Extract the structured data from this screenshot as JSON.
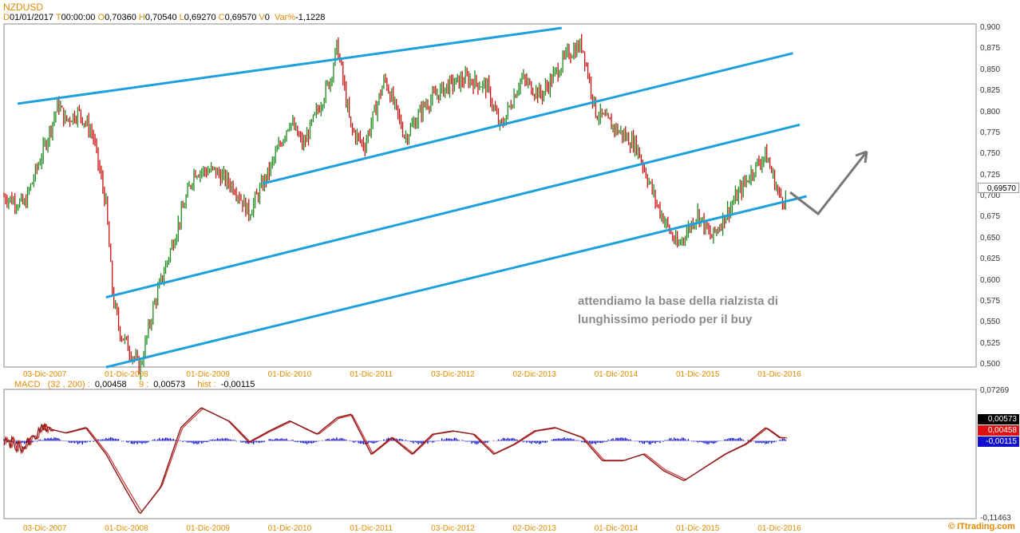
{
  "symbol": "NZDUSD",
  "ohlc_header": {
    "d_label": "D",
    "date": "01/01/2017",
    "t_label": "T",
    "time": "00:00:00",
    "o_label": "O",
    "open": "0,70360",
    "h_label": "H",
    "high": "0,70540",
    "l_label": "L",
    "low": "0,69270",
    "c_label": "C",
    "close": "0,69570",
    "v_label": "V",
    "volume": "0",
    "var_label": "Var%",
    "var": "-1,1228"
  },
  "price_panel": {
    "y_ticks": [
      "0,900",
      "0,875",
      "0,850",
      "0,825",
      "0,800",
      "0,775",
      "0,750",
      "0,725",
      "0,700",
      "0,675",
      "0,650",
      "0,625",
      "0,600",
      "0,575",
      "0,550",
      "0,525",
      "0,500"
    ],
    "last_price_box": "0,69570",
    "annotation_line1": "attendiamo la base della rialzista di",
    "annotation_line2": "lunghissimo periodo per il buy"
  },
  "x_ticks": [
    "03-Dic-2007",
    "01-Dic-2008",
    "01-Dic-2009",
    "01-Dic-2010",
    "01-Dic-2011",
    "03-Dic-2012",
    "02-Dic-2013",
    "01-Dic-2014",
    "01-Dic-2015",
    "01-Dic-2016"
  ],
  "macd_panel": {
    "label": "MACD",
    "params": "(32 , 200) :",
    "macd_value": "0,00458",
    "signal_label": "9 :",
    "signal_value": "0,00573",
    "hist_label": "hist :",
    "hist_value": "-0,00115",
    "y_max_label": "0,07269",
    "y_min_label": "-0,11463",
    "box_signal": "0,00573",
    "box_macd": "0,00458",
    "box_hist": "-0,00115"
  },
  "watermark": "© ITtrading.com",
  "colors": {
    "channel": "#1ea0dc",
    "candle_up": "#1e8a1e",
    "candle_down": "#cc1111",
    "macd_line": "#8b1a1a",
    "signal_line": "#cc3333",
    "hist": "#1111cc",
    "arrow": "#777777"
  },
  "chart_data": [
    {
      "type": "line",
      "series": [
        {
          "name": "NZDUSD",
          "points": [
            [
              "2007-06",
              0.7
            ],
            [
              "2007-09",
              0.69
            ],
            [
              "2007-12",
              0.76
            ],
            [
              "2008-02",
              0.81
            ],
            [
              "2008-03",
              0.79
            ],
            [
              "2008-05",
              0.8
            ],
            [
              "2008-07",
              0.775
            ],
            [
              "2008-09",
              0.69
            ],
            [
              "2008-10",
              0.58
            ],
            [
              "2008-11",
              0.54
            ],
            [
              "2009-02",
              0.495
            ],
            [
              "2009-04",
              0.57
            ],
            [
              "2009-07",
              0.65
            ],
            [
              "2009-10",
              0.73
            ],
            [
              "2010-01",
              0.73
            ],
            [
              "2010-04",
              0.71
            ],
            [
              "2010-06",
              0.68
            ],
            [
              "2010-09",
              0.73
            ],
            [
              "2010-12",
              0.79
            ],
            [
              "2011-02",
              0.76
            ],
            [
              "2011-06",
              0.84
            ],
            [
              "2011-07",
              0.88
            ],
            [
              "2011-09",
              0.78
            ],
            [
              "2011-11",
              0.76
            ],
            [
              "2012-02",
              0.84
            ],
            [
              "2012-05",
              0.77
            ],
            [
              "2012-08",
              0.81
            ],
            [
              "2012-11",
              0.83
            ],
            [
              "2013-02",
              0.84
            ],
            [
              "2013-05",
              0.83
            ],
            [
              "2013-07",
              0.78
            ],
            [
              "2013-10",
              0.84
            ],
            [
              "2014-01",
              0.82
            ],
            [
              "2014-05",
              0.87
            ],
            [
              "2014-07",
              0.88
            ],
            [
              "2014-09",
              0.8
            ],
            [
              "2014-12",
              0.78
            ],
            [
              "2015-03",
              0.76
            ],
            [
              "2015-06",
              0.69
            ],
            [
              "2015-09",
              0.64
            ],
            [
              "2015-12",
              0.68
            ],
            [
              "2016-02",
              0.65
            ],
            [
              "2016-05",
              0.69
            ],
            [
              "2016-08",
              0.73
            ],
            [
              "2016-10",
              0.75
            ],
            [
              "2016-12",
              0.7
            ],
            [
              "2017-01",
              0.6957
            ]
          ]
        }
      ],
      "y_range": [
        0.5,
        0.9
      ],
      "x_range": [
        "2007-06",
        "2017-01"
      ],
      "trendlines": [
        {
          "from": [
            "2007-08",
            0.81
          ],
          "to": [
            "2014-04",
            0.9
          ]
        },
        {
          "from": [
            "2010-08",
            0.715
          ],
          "to": [
            "2017-02",
            0.87
          ]
        },
        {
          "from": [
            "2008-09",
            0.58
          ],
          "to": [
            "2017-03",
            0.785
          ]
        },
        {
          "from": [
            "2008-09",
            0.497
          ],
          "to": [
            "2017-04",
            0.7
          ]
        }
      ]
    },
    {
      "type": "line",
      "series": [
        {
          "name": "MACD",
          "points": [
            [
              "2007-06",
              0.0
            ],
            [
              "2007-09",
              -0.01
            ],
            [
              "2007-12",
              0.02
            ],
            [
              "2008-03",
              0.012
            ],
            [
              "2008-06",
              0.02
            ],
            [
              "2008-09",
              -0.02
            ],
            [
              "2008-12",
              -0.075
            ],
            [
              "2009-02",
              -0.11
            ],
            [
              "2009-05",
              -0.07
            ],
            [
              "2009-08",
              0.02
            ],
            [
              "2009-11",
              0.05
            ],
            [
              "2010-03",
              0.03
            ],
            [
              "2010-06",
              -0.002
            ],
            [
              "2010-09",
              0.015
            ],
            [
              "2010-12",
              0.03
            ],
            [
              "2011-04",
              0.01
            ],
            [
              "2011-07",
              0.035
            ],
            [
              "2011-09",
              0.04
            ],
            [
              "2011-12",
              -0.02
            ],
            [
              "2012-03",
              0.005
            ],
            [
              "2012-06",
              -0.02
            ],
            [
              "2012-09",
              0.01
            ],
            [
              "2012-12",
              0.015
            ],
            [
              "2013-03",
              0.01
            ],
            [
              "2013-06",
              -0.02
            ],
            [
              "2013-09",
              -0.005
            ],
            [
              "2013-12",
              0.015
            ],
            [
              "2014-03",
              0.02
            ],
            [
              "2014-07",
              0.005
            ],
            [
              "2014-10",
              -0.03
            ],
            [
              "2015-01",
              -0.03
            ],
            [
              "2015-04",
              -0.02
            ],
            [
              "2015-07",
              -0.045
            ],
            [
              "2015-10",
              -0.06
            ],
            [
              "2016-01",
              -0.04
            ],
            [
              "2016-04",
              -0.02
            ],
            [
              "2016-07",
              -0.005
            ],
            [
              "2016-10",
              0.02
            ],
            [
              "2016-12",
              0.005
            ],
            [
              "2017-01",
              0.00458
            ]
          ]
        }
      ],
      "y_range": [
        -0.11463,
        0.07269
      ],
      "values_last": {
        "MACD": 0.00458,
        "signal": 0.00573,
        "hist": -0.00115
      }
    }
  ]
}
